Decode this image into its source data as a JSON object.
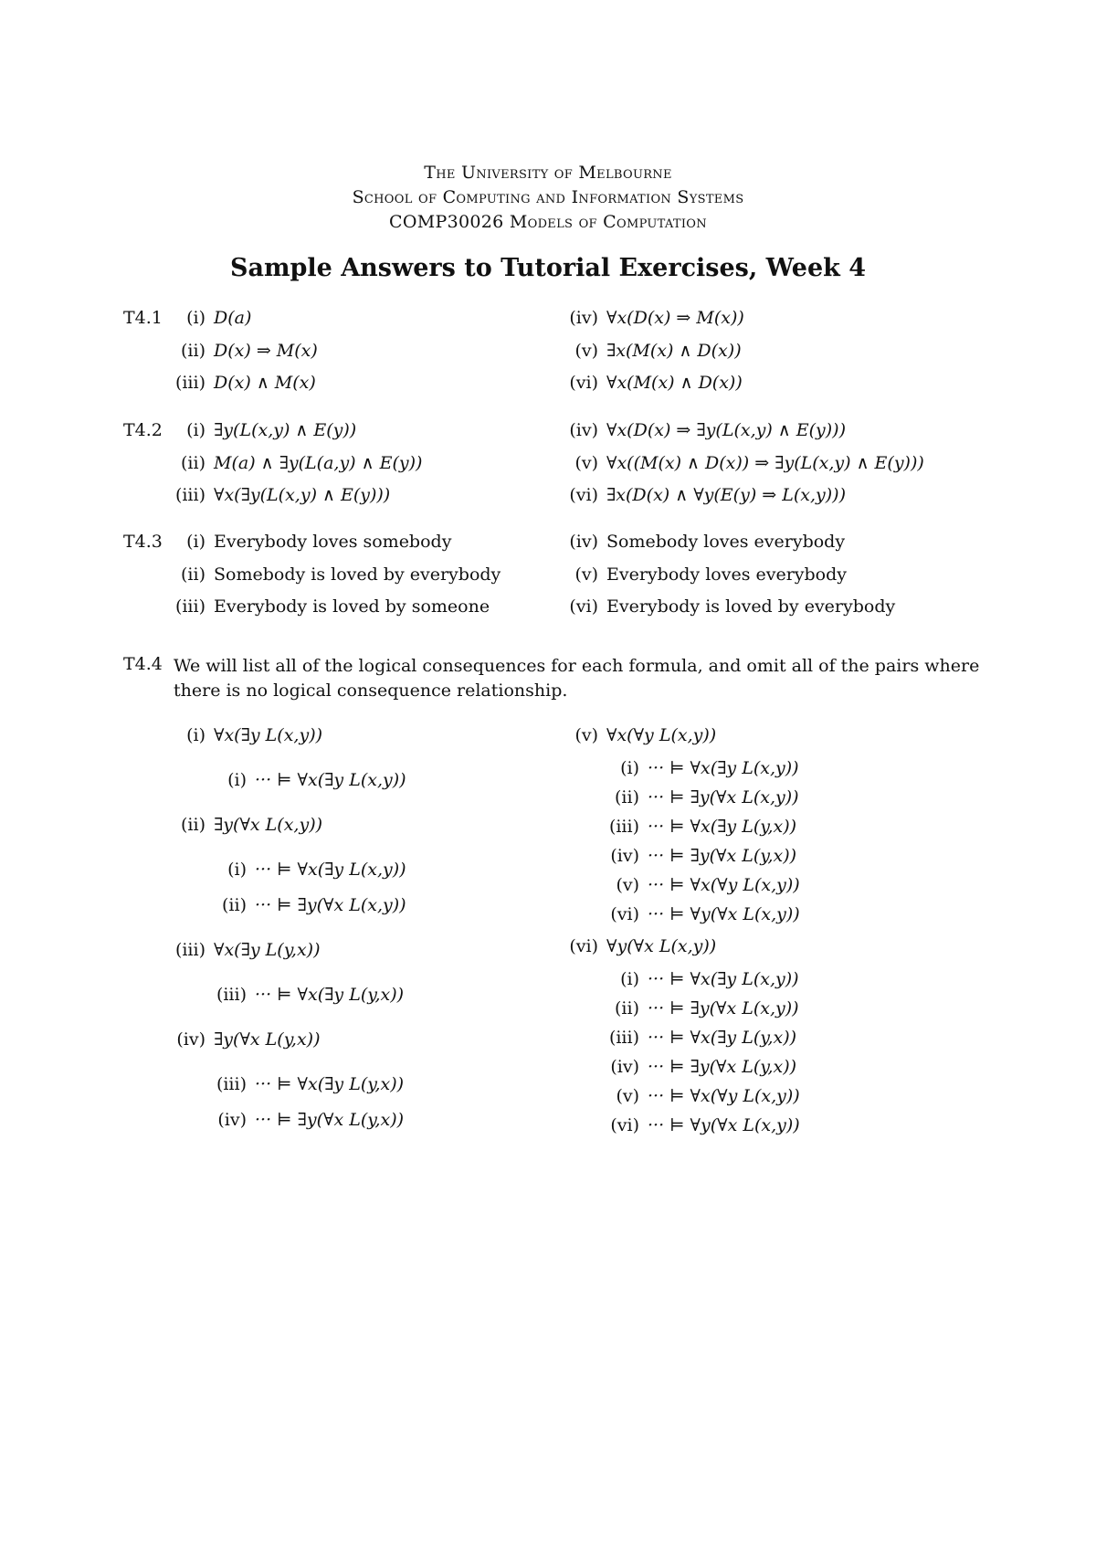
{
  "header": {
    "line1": "The University of Melbourne",
    "line2": "School of Computing and Information Systems",
    "line3": "COMP30026 Models of Computation"
  },
  "title": "Sample Answers to Tutorial Exercises, Week 4",
  "sections": [
    {
      "label": "T4.1",
      "left": [
        [
          "(i)",
          "D(a)"
        ],
        [
          "(ii)",
          "D(x) ⇒ M(x)"
        ],
        [
          "(iii)",
          "D(x) ∧ M(x)"
        ]
      ],
      "right": [
        [
          "(iv)",
          "∀x(D(x) ⇒ M(x))"
        ],
        [
          "(v)",
          "∃x(M(x) ∧ D(x))"
        ],
        [
          "(vi)",
          "∀x(M(x) ∧ D(x))"
        ]
      ]
    },
    {
      "label": "T4.2",
      "left": [
        [
          "(i)",
          "∃y(L(x,y) ∧ E(y))"
        ],
        [
          "(ii)",
          "M(a) ∧ ∃y(L(a,y) ∧ E(y))"
        ],
        [
          "(iii)",
          "∀x(∃y(L(x,y) ∧ E(y)))"
        ]
      ],
      "right": [
        [
          "(iv)",
          "∀x(D(x) ⇒ ∃y(L(x,y) ∧ E(y)))"
        ],
        [
          "(v)",
          "∀x((M(x) ∧ D(x)) ⇒ ∃y(L(x,y) ∧ E(y)))"
        ],
        [
          "(vi)",
          "∃x(D(x) ∧ ∀y(E(y) ⇒ L(x,y)))"
        ]
      ]
    },
    {
      "label": "T4.3",
      "left": [
        [
          "(i)",
          "Everybody loves somebody"
        ],
        [
          "(ii)",
          "Somebody is loved by everybody"
        ],
        [
          "(iii)",
          "Everybody is loved by someone"
        ]
      ],
      "right": [
        [
          "(iv)",
          "Somebody loves everybody"
        ],
        [
          "(v)",
          "Everybody loves everybody"
        ],
        [
          "(vi)",
          "Everybody is loved by everybody"
        ]
      ]
    }
  ],
  "t44": {
    "label": "T4.4",
    "text": "We will list all of the logical consequences for each formula, and omit all of the pairs where there is no logical consequence relationship.",
    "left": [
      {
        "num": "(i)",
        "formula": "∀x(∃y L(x,y))",
        "consequences": [
          [
            "(i)",
            "··· ⊨ ∀x(∃y L(x,y))"
          ]
        ]
      },
      {
        "num": "(ii)",
        "formula": "∃y(∀x L(x,y))",
        "consequences": [
          [
            "(i)",
            "··· ⊨ ∀x(∃y L(x,y))"
          ],
          [
            "(ii)",
            "··· ⊨ ∃y(∀x L(x,y))"
          ]
        ]
      },
      {
        "num": "(iii)",
        "formula": "∀x(∃y L(y,x))",
        "consequences": [
          [
            "(iii)",
            "··· ⊨ ∀x(∃y L(y,x))"
          ]
        ]
      },
      {
        "num": "(iv)",
        "formula": "∃y(∀x L(y,x))",
        "consequences": [
          [
            "(iii)",
            "··· ⊨ ∀x(∃y L(y,x))"
          ],
          [
            "(iv)",
            "··· ⊨ ∃y(∀x L(y,x))"
          ]
        ]
      }
    ],
    "right": [
      {
        "num": "(v)",
        "formula": "∀x(∀y L(x,y))",
        "consequences": [
          [
            "(i)",
            "··· ⊨ ∀x(∃y L(x,y))"
          ],
          [
            "(ii)",
            "··· ⊨ ∃y(∀x L(x,y))"
          ],
          [
            "(iii)",
            "··· ⊨ ∀x(∃y L(y,x))"
          ],
          [
            "(iv)",
            "··· ⊨ ∃y(∀x L(y,x))"
          ],
          [
            "(v)",
            "··· ⊨ ∀x(∀y L(x,y))"
          ],
          [
            "(vi)",
            "··· ⊨ ∀y(∀x L(x,y))"
          ]
        ]
      },
      {
        "num": "(vi)",
        "formula": "∀y(∀x L(x,y))",
        "consequences": [
          [
            "(i)",
            "··· ⊨ ∀x(∃y L(x,y))"
          ],
          [
            "(ii)",
            "··· ⊨ ∃y(∀x L(x,y))"
          ],
          [
            "(iii)",
            "··· ⊨ ∀x(∃y L(y,x))"
          ],
          [
            "(iv)",
            "··· ⊨ ∃y(∀x L(y,x))"
          ],
          [
            "(v)",
            "··· ⊨ ∀x(∀y L(x,y))"
          ],
          [
            "(vi)",
            "··· ⊨ ∀y(∀x L(x,y))"
          ]
        ]
      }
    ]
  }
}
